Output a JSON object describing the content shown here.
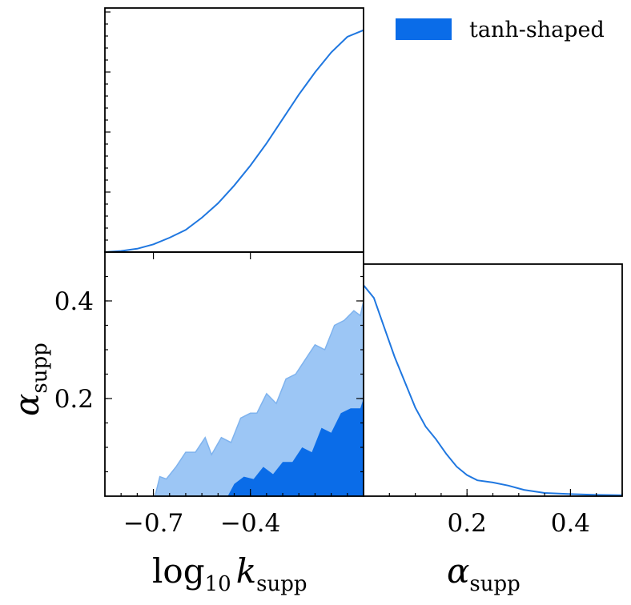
{
  "colors": {
    "line": "#1f77e0",
    "outer_fill": "#9cc6f5",
    "outer_stroke": "#7fb3ee",
    "inner_fill": "#0a6ce8",
    "legend_patch": "#0a6ce8"
  },
  "legend": {
    "label": "tanh-shaped"
  },
  "chart_data": [
    {
      "panel": "top-left",
      "type": "line",
      "description_of_axes": "marginal posterior of log10 k_supp",
      "xlim": [
        -0.85,
        -0.05
      ],
      "ylim": [
        0,
        1.1
      ],
      "series": [
        {
          "name": "tanh-shaped",
          "x": [
            -0.85,
            -0.8,
            -0.75,
            -0.7,
            -0.65,
            -0.6,
            -0.55,
            -0.5,
            -0.45,
            -0.4,
            -0.35,
            -0.3,
            -0.25,
            -0.2,
            -0.15,
            -0.1,
            -0.05
          ],
          "y": [
            0.0,
            0.005,
            0.015,
            0.035,
            0.065,
            0.1,
            0.155,
            0.22,
            0.3,
            0.39,
            0.49,
            0.6,
            0.71,
            0.81,
            0.9,
            0.97,
            1.0
          ]
        }
      ]
    },
    {
      "panel": "bottom-left",
      "type": "area",
      "xlabel_main": "log",
      "xlabel_sub": "10",
      "xlabel_var": "k",
      "xlabel_var_sub": "supp",
      "ylabel_var": "α",
      "ylabel_sub": "supp",
      "xlim": [
        -0.85,
        -0.05
      ],
      "ylim": [
        0,
        0.5
      ],
      "xticks": [
        -0.7,
        -0.4
      ],
      "xtick_labels": [
        "−0.7",
        "−0.4"
      ],
      "yticks": [
        0.2,
        0.4
      ],
      "ytick_labels": [
        "0.2",
        "0.4"
      ],
      "outer_contour_upper": {
        "x": [
          -0.695,
          -0.68,
          -0.66,
          -0.63,
          -0.6,
          -0.57,
          -0.54,
          -0.52,
          -0.49,
          -0.46,
          -0.43,
          -0.4,
          -0.38,
          -0.35,
          -0.32,
          -0.29,
          -0.26,
          -0.23,
          -0.2,
          -0.17,
          -0.14,
          -0.11,
          -0.08,
          -0.06,
          -0.05
        ],
        "y": [
          0.0,
          0.04,
          0.035,
          0.06,
          0.09,
          0.09,
          0.12,
          0.085,
          0.12,
          0.11,
          0.16,
          0.17,
          0.17,
          0.21,
          0.19,
          0.24,
          0.25,
          0.28,
          0.31,
          0.3,
          0.35,
          0.36,
          0.38,
          0.37,
          0.4
        ]
      },
      "inner_contour_upper": {
        "x": [
          -0.47,
          -0.45,
          -0.42,
          -0.39,
          -0.36,
          -0.33,
          -0.3,
          -0.27,
          -0.24,
          -0.21,
          -0.18,
          -0.15,
          -0.12,
          -0.09,
          -0.06,
          -0.05
        ],
        "y": [
          0.0,
          0.025,
          0.04,
          0.035,
          0.06,
          0.045,
          0.07,
          0.07,
          0.1,
          0.09,
          0.14,
          0.13,
          0.17,
          0.18,
          0.18,
          0.2
        ]
      }
    },
    {
      "panel": "bottom-right",
      "type": "line",
      "xlabel_var": "α",
      "xlabel_sub": "supp",
      "xlim": [
        0.0,
        0.5
      ],
      "ylim": [
        0,
        1.1
      ],
      "xticks": [
        0.2,
        0.4
      ],
      "xtick_labels": [
        "0.2",
        "0.4"
      ],
      "series": [
        {
          "name": "tanh-shaped",
          "x": [
            0.0,
            0.02,
            0.04,
            0.06,
            0.08,
            0.1,
            0.12,
            0.14,
            0.16,
            0.18,
            0.2,
            0.22,
            0.25,
            0.28,
            0.31,
            0.35,
            0.4,
            0.45,
            0.5
          ],
          "y": [
            1.0,
            0.94,
            0.8,
            0.66,
            0.54,
            0.42,
            0.33,
            0.27,
            0.2,
            0.14,
            0.1,
            0.075,
            0.065,
            0.05,
            0.03,
            0.015,
            0.01,
            0.006,
            0.004
          ]
        }
      ]
    }
  ]
}
